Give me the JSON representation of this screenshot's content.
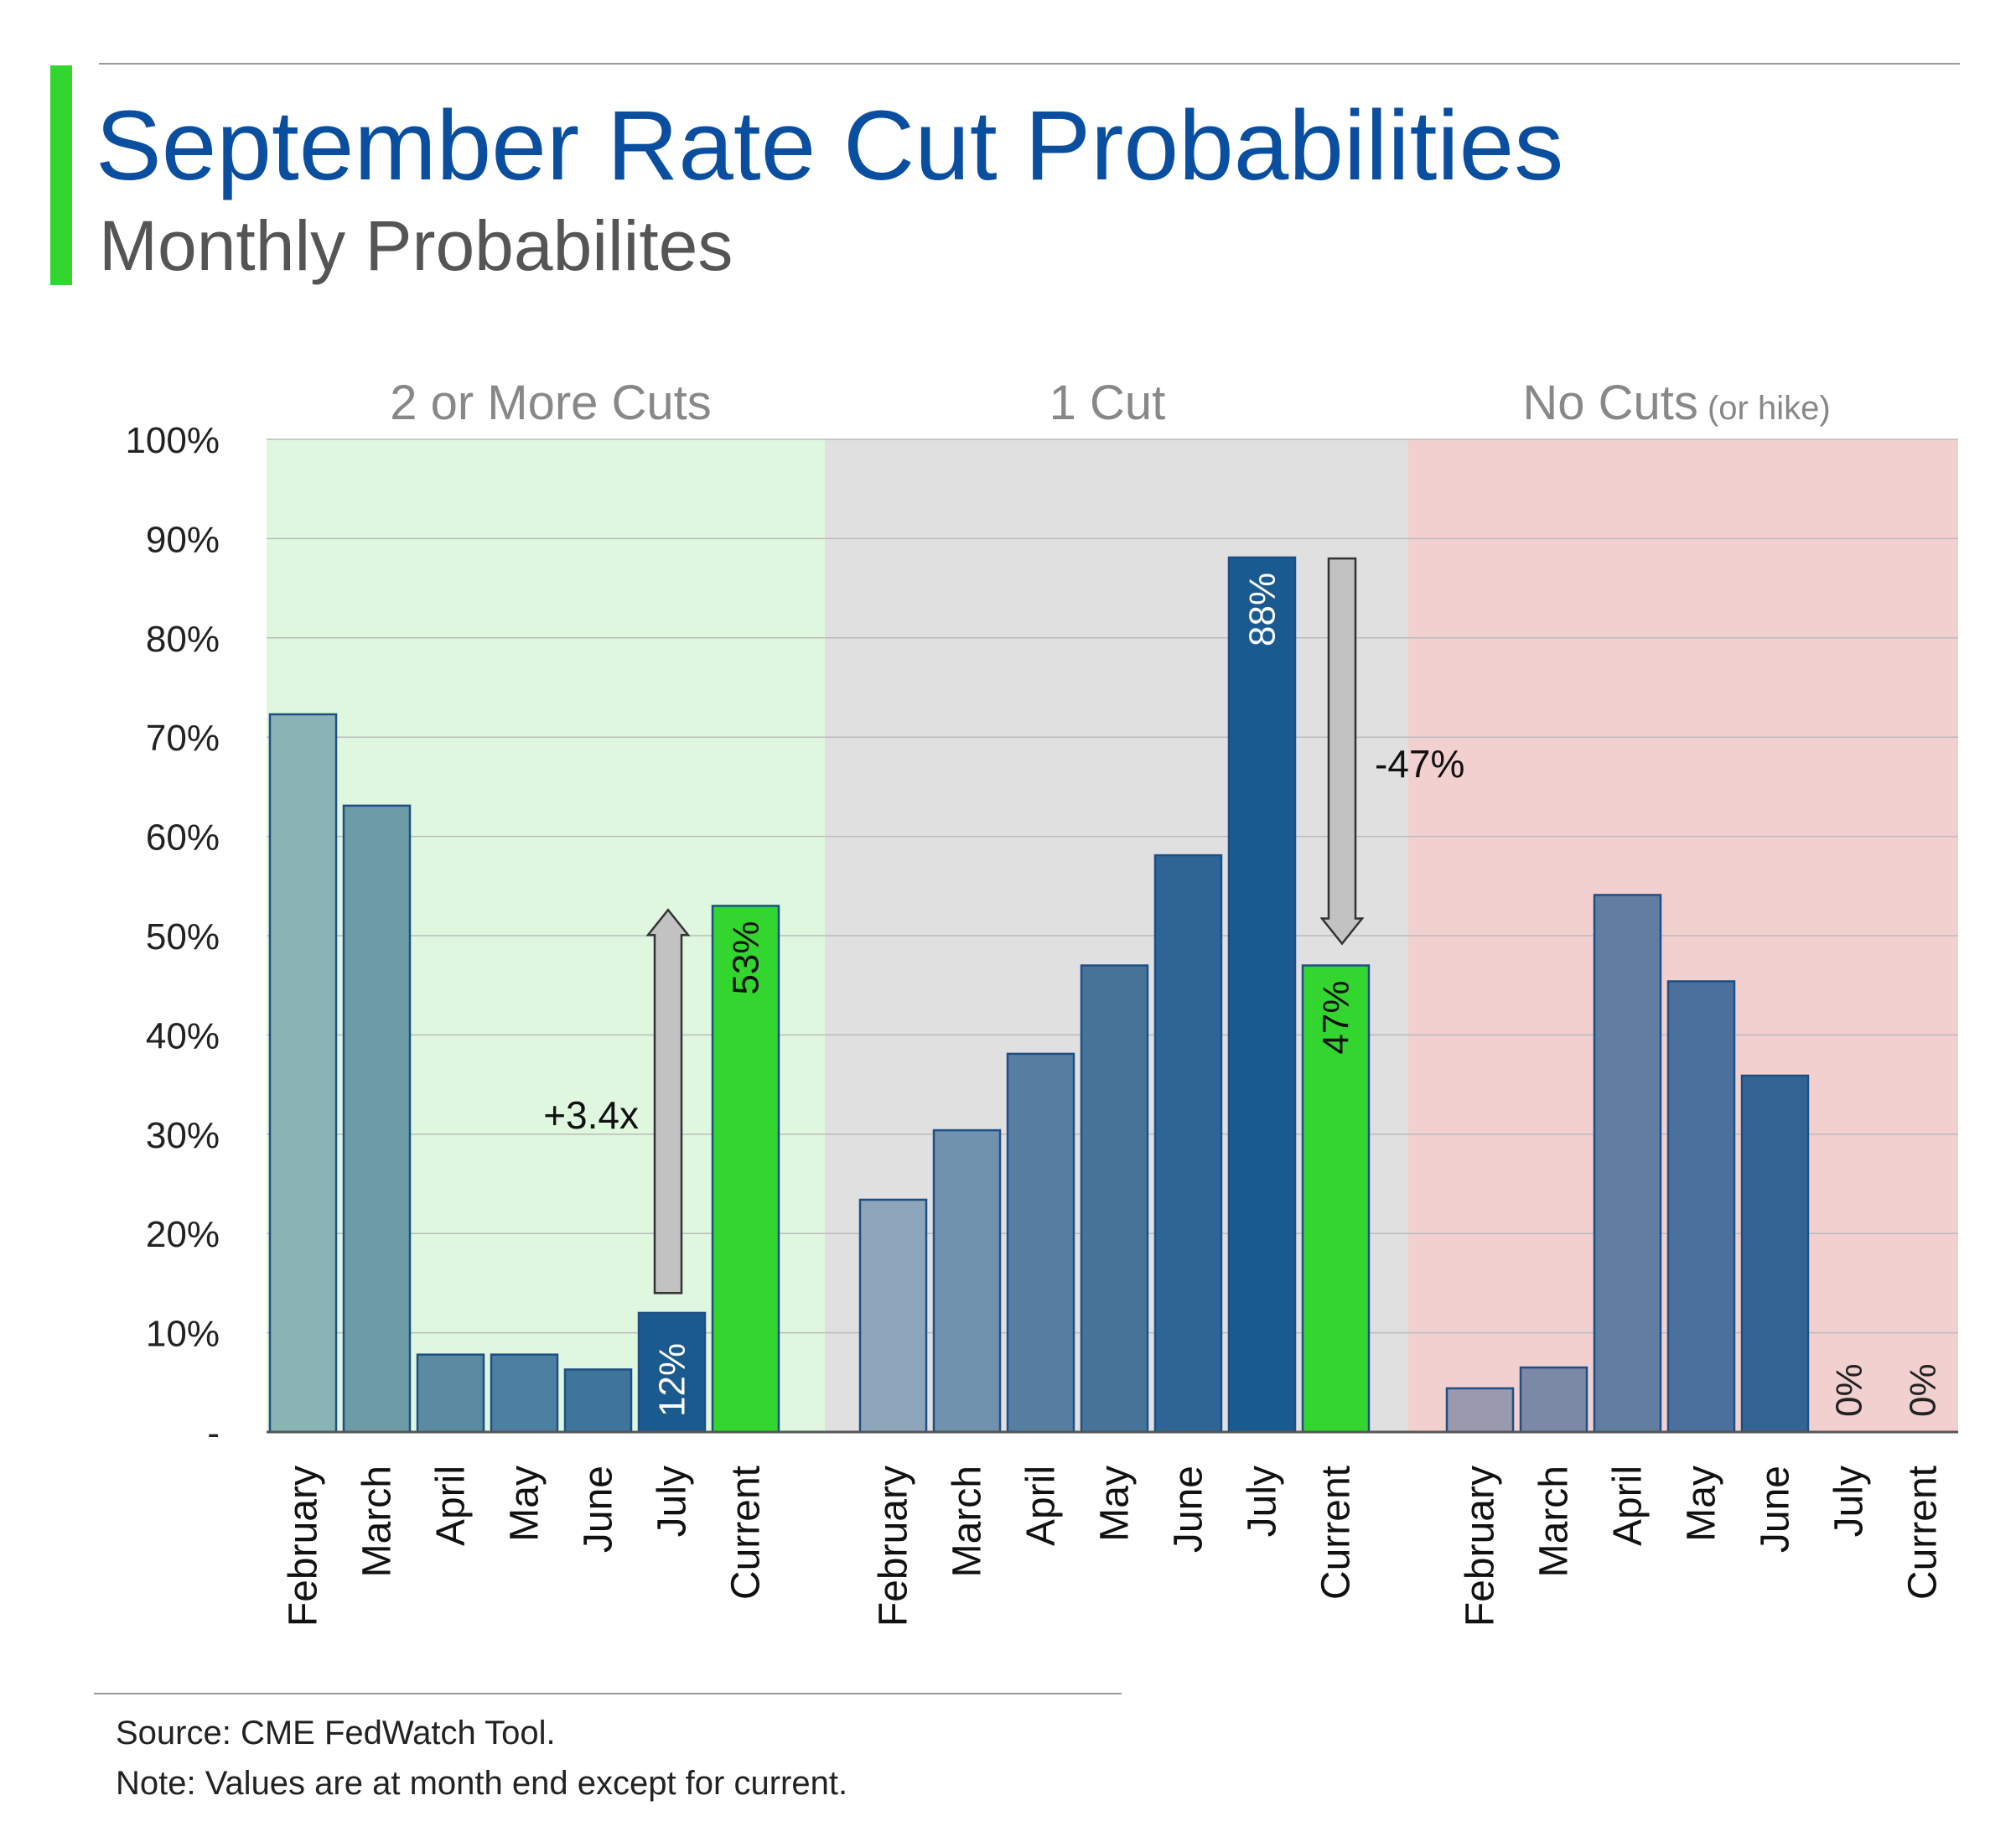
{
  "header": {
    "title": "September Rate Cut Probabilities",
    "subtitle": "Monthly Probabilites"
  },
  "colors": {
    "title": "#0a4ea0",
    "subtitle": "#555555",
    "accent_bar": "#33d62e",
    "panel_two_or_more": "#dff7de",
    "panel_one_cut": "#e0e0e0",
    "panel_no_cuts": "#f2d0d0",
    "current_bar": "#33d62e",
    "arrow_fill": "#c2c2c2"
  },
  "chart_data": {
    "type": "bar",
    "title": "September Rate Cut Probabilities",
    "subtitle": "Monthly Probabilites",
    "ylabel": "",
    "ylim": [
      0,
      100
    ],
    "yticks": [
      {
        "value": 0,
        "label": "-"
      },
      {
        "value": 10,
        "label": "10%"
      },
      {
        "value": 20,
        "label": "20%"
      },
      {
        "value": 30,
        "label": "30%"
      },
      {
        "value": 40,
        "label": "40%"
      },
      {
        "value": 50,
        "label": "50%"
      },
      {
        "value": 60,
        "label": "60%"
      },
      {
        "value": 70,
        "label": "70%"
      },
      {
        "value": 80,
        "label": "80%"
      },
      {
        "value": 90,
        "label": "90%"
      },
      {
        "value": 100,
        "label": "100%"
      }
    ],
    "grid": true,
    "categories": [
      "February",
      "March",
      "April",
      "May",
      "June",
      "July",
      "Current"
    ],
    "groups": [
      {
        "name": "2 or More Cuts",
        "name_suffix": "",
        "values": [
          72.3,
          63.1,
          7.8,
          7.8,
          6.3,
          12.0,
          53.0
        ],
        "colors": [
          "#8ab3b5",
          "#6e9ca6",
          "#5b8ba3",
          "#4d80a0",
          "#3f759b",
          "#1a5a8e",
          "#33d62e"
        ],
        "labels": [
          "",
          "",
          "",
          "",
          "",
          "12%",
          "53%"
        ],
        "label_colors": [
          "",
          "",
          "",
          "",
          "",
          "#ffffff",
          "#111111"
        ],
        "annotation": {
          "text": "+3.4x",
          "direction": "up",
          "from_value": 14,
          "to_value": 52.6,
          "category_index": 5
        }
      },
      {
        "name": "1 Cut",
        "name_suffix": "",
        "values": [
          23.4,
          30.4,
          38.1,
          47.0,
          58.1,
          88.1,
          47.0
        ],
        "colors": [
          "#8ea6bb",
          "#7092ad",
          "#587fa2",
          "#487399",
          "#2f6595",
          "#195b90",
          "#33d62e"
        ],
        "labels": [
          "",
          "",
          "",
          "",
          "",
          "88%",
          "47%"
        ],
        "label_colors": [
          "",
          "",
          "",
          "",
          "",
          "#ffffff",
          "#111111"
        ],
        "annotation": {
          "text": "-47%",
          "direction": "down",
          "from_value": 88,
          "to_value": 49.2,
          "category_index": 6
        }
      },
      {
        "name": "No Cuts",
        "name_suffix": "(or hike)",
        "values": [
          4.4,
          6.5,
          54.1,
          45.4,
          35.9,
          0,
          0
        ],
        "colors": [
          "#9a99ae",
          "#7b88a6",
          "#617d9f",
          "#4a709b",
          "#346592",
          "#999999",
          "#999999"
        ],
        "labels": [
          "",
          "",
          "",
          "",
          "",
          "0%",
          "0%"
        ],
        "label_colors": [
          "",
          "",
          "",
          "",
          "",
          "#222222",
          "#222222"
        ]
      }
    ]
  },
  "footer": {
    "source": "Source: CME FedWatch Tool.",
    "note": "Note: Values are at month end except for current."
  }
}
